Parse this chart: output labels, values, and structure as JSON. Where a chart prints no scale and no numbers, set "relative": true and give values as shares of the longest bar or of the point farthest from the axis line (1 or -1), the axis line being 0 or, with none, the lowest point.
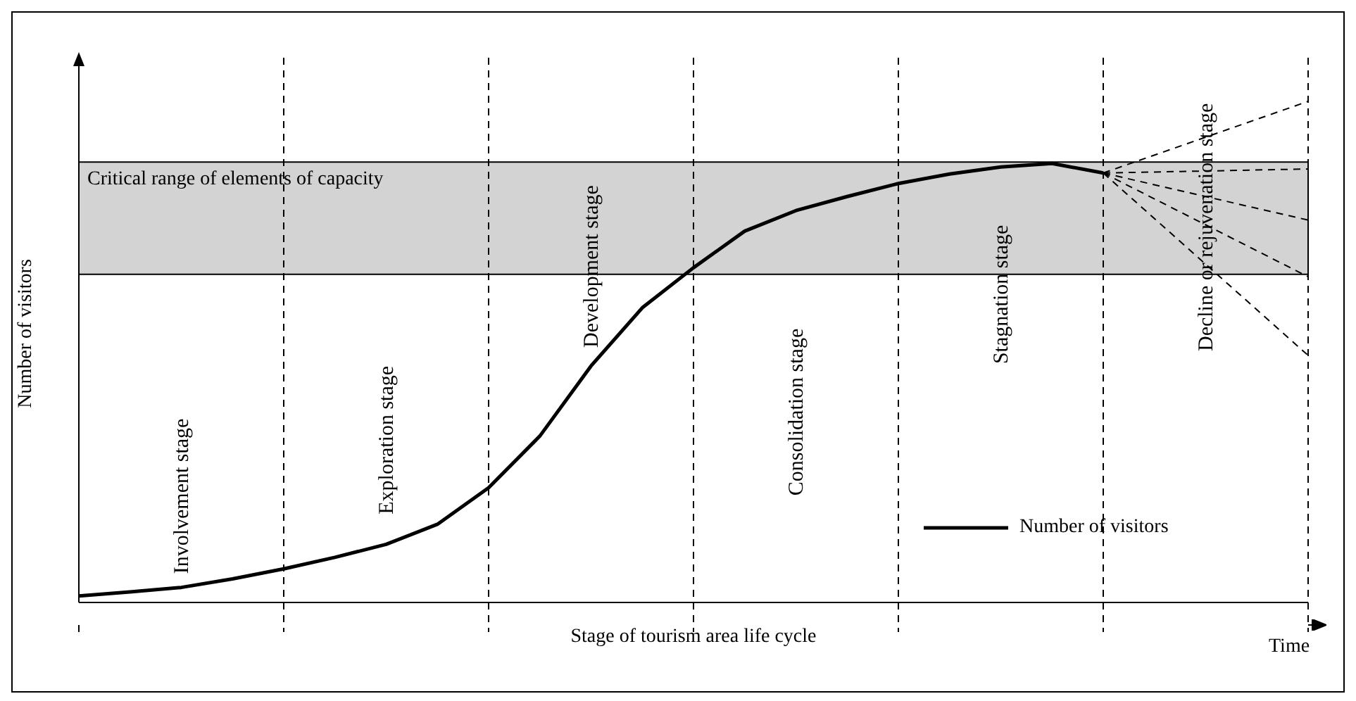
{
  "chart_data": {
    "type": "line",
    "relative": true,
    "xlabel": "Stage of tourism area life cycle",
    "ylabel": "Number of visitors",
    "legend": "bottom right",
    "grid": "x",
    "categories": [
      null,
      null,
      null,
      null,
      null,
      null,
      null,
      null,
      null,
      null,
      null,
      null,
      null,
      null,
      null,
      null,
      null,
      null,
      null,
      null,
      null,
      null,
      null,
      null,
      null
    ],
    "series": [
      {
        "name": "Number of visitors",
        "color": "#000000",
        "line_style": "solid",
        "values": [
          0.013,
          0.021,
          0.03,
          0.047,
          0.067,
          0.09,
          0.116,
          0.156,
          0.229,
          0.332,
          0.472,
          0.588,
          0.668,
          0.741,
          0.782,
          0.81,
          0.836,
          0.855,
          0.869,
          0.876,
          0.857,
          null,
          null,
          null,
          null
        ]
      },
      {
        "color": "#000000",
        "line_style": "dashed",
        "values": [
          null,
          null,
          null,
          null,
          null,
          null,
          null,
          null,
          null,
          null,
          null,
          null,
          null,
          null,
          null,
          null,
          null,
          null,
          null,
          null,
          0.857,
          null,
          null,
          null,
          1
        ]
      },
      {
        "color": "#000000",
        "line_style": "dashed",
        "values": [
          null,
          null,
          null,
          null,
          null,
          null,
          null,
          null,
          null,
          null,
          null,
          null,
          null,
          null,
          null,
          null,
          null,
          null,
          null,
          null,
          0.857,
          null,
          null,
          null,
          0.865
        ]
      },
      {
        "color": "#000000",
        "line_style": "dashed",
        "values": [
          null,
          null,
          null,
          null,
          null,
          null,
          null,
          null,
          null,
          null,
          null,
          null,
          null,
          null,
          null,
          null,
          null,
          null,
          null,
          null,
          0.857,
          null,
          null,
          null,
          0.763
        ]
      },
      {
        "color": "#000000",
        "line_style": "dashed",
        "values": [
          null,
          null,
          null,
          null,
          null,
          null,
          null,
          null,
          null,
          null,
          null,
          null,
          null,
          null,
          null,
          null,
          null,
          null,
          null,
          null,
          0.857,
          null,
          null,
          null,
          0.65
        ]
      },
      {
        "color": "#000000",
        "line_style": "dashed",
        "values": [
          null,
          null,
          null,
          null,
          null,
          null,
          null,
          null,
          null,
          null,
          null,
          null,
          null,
          null,
          null,
          null,
          null,
          null,
          null,
          null,
          0.857,
          null,
          null,
          null,
          0.493
        ]
      }
    ],
    "bands": [
      {
        "axis": "y",
        "from": 0.655,
        "to": 0.879,
        "label": "Critical range of elements of capacity",
        "color": "#d3d3d3"
      }
    ],
    "annotations": [
      "Involvement stage",
      "Exploration stage",
      "Development stage",
      "Consolidation stage",
      "Stagnation stage",
      "Decline or rejuvenation stage",
      "Time"
    ]
  }
}
